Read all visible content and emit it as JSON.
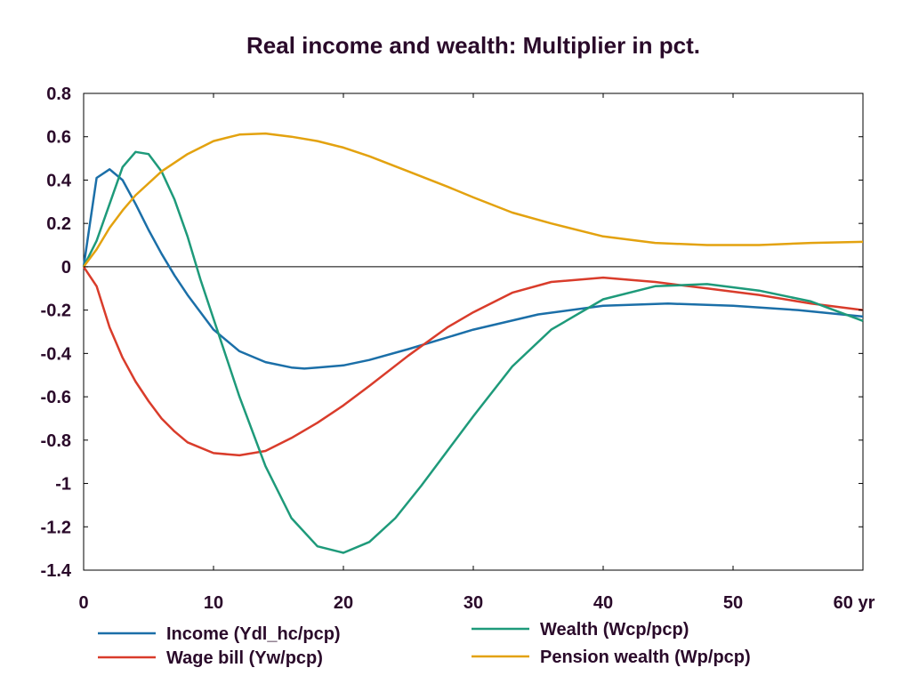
{
  "chart_data": {
    "type": "line",
    "title": "Real income and wealth: Multiplier in pct.",
    "x_unit_label": "yr",
    "xlim": [
      0,
      60
    ],
    "ylim": [
      -1.4,
      0.8
    ],
    "x_ticks": [
      0,
      10,
      20,
      30,
      40,
      50,
      60
    ],
    "x_tick_labels": [
      "0",
      "10",
      "20",
      "30",
      "40",
      "50",
      "60 yr"
    ],
    "y_ticks": [
      0.8,
      0.6,
      0.4,
      0.2,
      0,
      -0.2,
      -0.4,
      -0.6,
      -0.8,
      -1,
      -1.2,
      -1.4
    ],
    "y_tick_labels": [
      "0.8",
      "0.6",
      "0.4",
      "0.2",
      "0",
      "-0.2",
      "-0.4",
      "-0.6",
      "-0.8",
      "-1",
      "-1.2",
      "-1.4"
    ],
    "grid": false,
    "zero_line": true,
    "legend_position": "bottom",
    "series": [
      {
        "name": "Income (Ydl_hc/pcp)",
        "color": "#1b6fa8",
        "x": [
          0,
          1,
          2,
          3,
          4,
          5,
          6,
          7,
          8,
          10,
          12,
          14,
          16,
          17,
          18,
          20,
          22,
          25,
          30,
          35,
          40,
          45,
          50,
          55,
          60
        ],
        "y": [
          0,
          0.41,
          0.45,
          0.4,
          0.29,
          0.17,
          0.06,
          -0.04,
          -0.13,
          -0.29,
          -0.39,
          -0.44,
          -0.465,
          -0.47,
          -0.465,
          -0.455,
          -0.43,
          -0.38,
          -0.29,
          -0.22,
          -0.18,
          -0.17,
          -0.18,
          -0.2,
          -0.23
        ]
      },
      {
        "name": "Wage bill (Yw/pcp)",
        "color": "#d93c2b",
        "x": [
          0,
          1,
          2,
          3,
          4,
          5,
          6,
          7,
          8,
          10,
          12,
          14,
          16,
          18,
          20,
          22,
          25,
          28,
          30,
          33,
          36,
          40,
          44,
          48,
          52,
          56,
          60
        ],
        "y": [
          0,
          -0.09,
          -0.28,
          -0.42,
          -0.53,
          -0.62,
          -0.7,
          -0.76,
          -0.81,
          -0.86,
          -0.87,
          -0.85,
          -0.79,
          -0.72,
          -0.64,
          -0.55,
          -0.41,
          -0.28,
          -0.21,
          -0.12,
          -0.07,
          -0.05,
          -0.07,
          -0.1,
          -0.13,
          -0.17,
          -0.2
        ]
      },
      {
        "name": "Wealth (Wcp/pcp)",
        "color": "#1e9a7a",
        "x": [
          0,
          1,
          2,
          3,
          4,
          5,
          6,
          7,
          8,
          9,
          10,
          12,
          14,
          16,
          18,
          20,
          22,
          24,
          26,
          28,
          30,
          33,
          36,
          40,
          44,
          48,
          52,
          56,
          60
        ],
        "y": [
          0,
          0.12,
          0.29,
          0.46,
          0.53,
          0.52,
          0.44,
          0.31,
          0.14,
          -0.06,
          -0.24,
          -0.6,
          -0.92,
          -1.16,
          -1.29,
          -1.32,
          -1.27,
          -1.16,
          -1.01,
          -0.85,
          -0.69,
          -0.46,
          -0.29,
          -0.15,
          -0.09,
          -0.08,
          -0.11,
          -0.16,
          -0.25
        ]
      },
      {
        "name": "Pension wealth (Wp/pcp)",
        "color": "#e3a20f",
        "x": [
          0,
          1,
          2,
          3,
          4,
          6,
          8,
          10,
          12,
          14,
          16,
          18,
          20,
          22,
          25,
          28,
          30,
          33,
          36,
          40,
          44,
          48,
          52,
          56,
          60
        ],
        "y": [
          0,
          0.08,
          0.18,
          0.26,
          0.33,
          0.44,
          0.52,
          0.58,
          0.61,
          0.615,
          0.6,
          0.58,
          0.55,
          0.51,
          0.44,
          0.37,
          0.32,
          0.25,
          0.2,
          0.14,
          0.11,
          0.1,
          0.1,
          0.11,
          0.115
        ]
      }
    ]
  }
}
